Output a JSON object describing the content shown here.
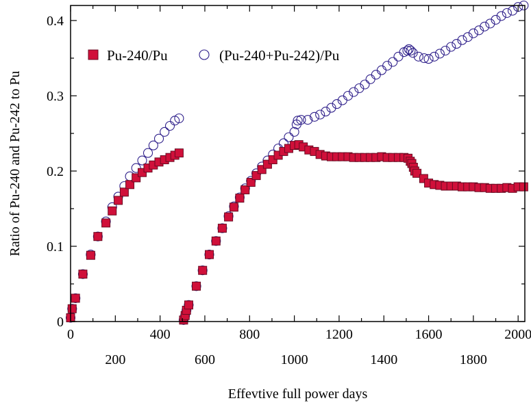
{
  "chart_data": {
    "type": "scatter",
    "xlabel": "Effevtive full power days",
    "ylabel": "Ratio of Pu-240 and Pu-242 to Pu",
    "xlim": [
      0,
      2030
    ],
    "ylim": [
      0,
      0.42
    ],
    "x_ticks_top": [
      0,
      400,
      800,
      1200,
      1600,
      2000
    ],
    "x_ticks_bottom": [
      200,
      600,
      1000,
      1400,
      1800
    ],
    "y_ticks": [
      0,
      0.1,
      0.2,
      0.3,
      0.4
    ],
    "y_tick_labels": [
      "0",
      "0.1",
      "0.2",
      "0.3",
      "0.4"
    ],
    "grid": false,
    "legend_position": "top-left",
    "colors": {
      "series1_fill": "#d0103a",
      "series1_edge": "#6a0a22",
      "series2_edge": "#2e1f8a"
    },
    "series": [
      {
        "name": "Pu-240/Pu",
        "marker": "square",
        "points": [
          [
            0,
            0.005
          ],
          [
            7,
            0.017
          ],
          [
            22,
            0.031
          ],
          [
            55,
            0.063
          ],
          [
            90,
            0.088
          ],
          [
            122,
            0.113
          ],
          [
            158,
            0.131
          ],
          [
            186,
            0.147
          ],
          [
            213,
            0.161
          ],
          [
            240,
            0.172
          ],
          [
            265,
            0.182
          ],
          [
            293,
            0.191
          ],
          [
            320,
            0.198
          ],
          [
            346,
            0.204
          ],
          [
            370,
            0.208
          ],
          [
            395,
            0.212
          ],
          [
            420,
            0.215
          ],
          [
            444,
            0.218
          ],
          [
            466,
            0.221
          ],
          [
            485,
            0.224
          ],
          [
            505,
            0.002
          ],
          [
            512,
            0.008
          ],
          [
            518,
            0.015
          ],
          [
            528,
            0.022
          ],
          [
            562,
            0.047
          ],
          [
            590,
            0.068
          ],
          [
            620,
            0.089
          ],
          [
            650,
            0.107
          ],
          [
            678,
            0.124
          ],
          [
            706,
            0.139
          ],
          [
            730,
            0.152
          ],
          [
            756,
            0.164
          ],
          [
            780,
            0.175
          ],
          [
            806,
            0.185
          ],
          [
            830,
            0.194
          ],
          [
            855,
            0.202
          ],
          [
            880,
            0.209
          ],
          [
            904,
            0.215
          ],
          [
            928,
            0.221
          ],
          [
            952,
            0.226
          ],
          [
            975,
            0.23
          ],
          [
            1000,
            0.234
          ],
          [
            1020,
            0.235
          ],
          [
            1040,
            0.232
          ],
          [
            1065,
            0.228
          ],
          [
            1090,
            0.226
          ],
          [
            1115,
            0.222
          ],
          [
            1140,
            0.22
          ],
          [
            1165,
            0.219
          ],
          [
            1190,
            0.219
          ],
          [
            1215,
            0.219
          ],
          [
            1240,
            0.219
          ],
          [
            1265,
            0.218
          ],
          [
            1290,
            0.218
          ],
          [
            1315,
            0.218
          ],
          [
            1340,
            0.218
          ],
          [
            1365,
            0.218
          ],
          [
            1390,
            0.219
          ],
          [
            1415,
            0.218
          ],
          [
            1440,
            0.218
          ],
          [
            1465,
            0.218
          ],
          [
            1490,
            0.218
          ],
          [
            1508,
            0.217
          ],
          [
            1518,
            0.213
          ],
          [
            1525,
            0.21
          ],
          [
            1532,
            0.205
          ],
          [
            1538,
            0.2
          ],
          [
            1548,
            0.197
          ],
          [
            1578,
            0.19
          ],
          [
            1600,
            0.184
          ],
          [
            1625,
            0.182
          ],
          [
            1650,
            0.181
          ],
          [
            1675,
            0.18
          ],
          [
            1700,
            0.18
          ],
          [
            1725,
            0.18
          ],
          [
            1750,
            0.179
          ],
          [
            1775,
            0.179
          ],
          [
            1800,
            0.179
          ],
          [
            1825,
            0.178
          ],
          [
            1850,
            0.178
          ],
          [
            1875,
            0.177
          ],
          [
            1900,
            0.177
          ],
          [
            1925,
            0.177
          ],
          [
            1950,
            0.178
          ],
          [
            1975,
            0.177
          ],
          [
            2000,
            0.179
          ],
          [
            2025,
            0.179
          ]
        ]
      },
      {
        "name": "(Pu-240+Pu-242)/Pu",
        "marker": "circle",
        "points": [
          [
            0,
            0.005
          ],
          [
            7,
            0.017
          ],
          [
            22,
            0.031
          ],
          [
            55,
            0.063
          ],
          [
            90,
            0.089
          ],
          [
            122,
            0.113
          ],
          [
            158,
            0.133
          ],
          [
            186,
            0.152
          ],
          [
            213,
            0.166
          ],
          [
            240,
            0.18
          ],
          [
            265,
            0.193
          ],
          [
            293,
            0.204
          ],
          [
            320,
            0.214
          ],
          [
            346,
            0.224
          ],
          [
            370,
            0.234
          ],
          [
            395,
            0.243
          ],
          [
            420,
            0.252
          ],
          [
            444,
            0.26
          ],
          [
            466,
            0.267
          ],
          [
            485,
            0.27
          ],
          [
            505,
            0.002
          ],
          [
            512,
            0.008
          ],
          [
            518,
            0.015
          ],
          [
            528,
            0.022
          ],
          [
            562,
            0.047
          ],
          [
            590,
            0.068
          ],
          [
            620,
            0.089
          ],
          [
            650,
            0.107
          ],
          [
            678,
            0.124
          ],
          [
            706,
            0.14
          ],
          [
            730,
            0.153
          ],
          [
            756,
            0.165
          ],
          [
            780,
            0.177
          ],
          [
            806,
            0.187
          ],
          [
            830,
            0.197
          ],
          [
            855,
            0.206
          ],
          [
            880,
            0.214
          ],
          [
            904,
            0.222
          ],
          [
            928,
            0.23
          ],
          [
            952,
            0.237
          ],
          [
            975,
            0.245
          ],
          [
            1000,
            0.252
          ],
          [
            1010,
            0.262
          ],
          [
            1015,
            0.267
          ],
          [
            1030,
            0.268
          ],
          [
            1060,
            0.268
          ],
          [
            1090,
            0.272
          ],
          [
            1115,
            0.275
          ],
          [
            1140,
            0.279
          ],
          [
            1165,
            0.284
          ],
          [
            1190,
            0.289
          ],
          [
            1215,
            0.294
          ],
          [
            1240,
            0.3
          ],
          [
            1265,
            0.305
          ],
          [
            1290,
            0.31
          ],
          [
            1315,
            0.315
          ],
          [
            1340,
            0.322
          ],
          [
            1365,
            0.328
          ],
          [
            1390,
            0.334
          ],
          [
            1415,
            0.34
          ],
          [
            1440,
            0.345
          ],
          [
            1465,
            0.352
          ],
          [
            1490,
            0.358
          ],
          [
            1505,
            0.36
          ],
          [
            1512,
            0.362
          ],
          [
            1520,
            0.36
          ],
          [
            1530,
            0.357
          ],
          [
            1555,
            0.352
          ],
          [
            1580,
            0.35
          ],
          [
            1600,
            0.349
          ],
          [
            1625,
            0.352
          ],
          [
            1650,
            0.356
          ],
          [
            1675,
            0.36
          ],
          [
            1700,
            0.365
          ],
          [
            1725,
            0.369
          ],
          [
            1750,
            0.374
          ],
          [
            1775,
            0.378
          ],
          [
            1800,
            0.383
          ],
          [
            1825,
            0.387
          ],
          [
            1850,
            0.392
          ],
          [
            1875,
            0.396
          ],
          [
            1900,
            0.401
          ],
          [
            1925,
            0.406
          ],
          [
            1950,
            0.41
          ],
          [
            1975,
            0.413
          ],
          [
            2000,
            0.418
          ],
          [
            2025,
            0.42
          ]
        ]
      }
    ]
  }
}
